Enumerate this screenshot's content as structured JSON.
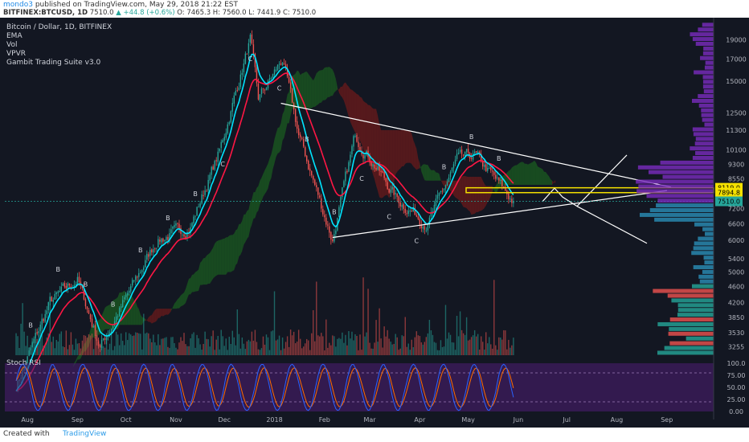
{
  "header": {
    "author": "mondo3",
    "published_text": "published on TradingView.com, May 29, 2018 21:22 EST",
    "symbol_text": "BITFINEX:BTCUSD, 1D",
    "last_text": "7510.0",
    "change_text": "▲ +44.8 (+0.6%)",
    "ohlc_text": "O: 7465.3 H: 7560.0 L: 7441.9 C: 7510.0"
  },
  "legend": {
    "title": "Bitcoin / Dollar, 1D, BITFINEX",
    "indicators": [
      "EMA",
      "Vol",
      "VPVR",
      "Gambit Trading Suite v3.0"
    ]
  },
  "osc_title": "Stoch RSI",
  "footer": {
    "created_with": "Created with",
    "brand": "TradingView"
  },
  "colors": {
    "background": "#131722",
    "bull": "#26a69a",
    "bear": "#ef5350",
    "ema_fast": "#00e5ff",
    "ema_slow": "#ff1744",
    "cloud_bull": "#1b5e20",
    "cloud_bear": "#6d1b1b",
    "stoch": "#2962ff",
    "stoch_signal": "#ff6d00",
    "osc_band": "#4a1d6e",
    "trendline": "#ffffff",
    "level_band": "#f5e100"
  },
  "chart_data": [
    {
      "type": "candlestick",
      "title": "Bitcoin / Dollar, 1D, BITFINEX",
      "y_scale": "log",
      "ylim": [
        3100,
        21000
      ],
      "x_labels": [
        "Aug",
        "Sep",
        "Oct",
        "Nov",
        "Dec",
        "2018",
        "Feb",
        "Mar",
        "Apr",
        "May",
        "Jun",
        "Jul",
        "Aug",
        "Sep"
      ],
      "y_ticks": [
        19000,
        17000,
        15000,
        12500,
        11300,
        10100,
        9300,
        8550,
        7200,
        6600,
        6000,
        5400,
        5000,
        4600,
        4200,
        3850,
        3530,
        3255
      ],
      "price_labels": [
        8119.0,
        7894.8,
        7510.0
      ],
      "key_points": [
        {
          "x": "Jul 25 2017",
          "close": 2600
        },
        {
          "x": "Aug 15 2017",
          "close": 4200
        },
        {
          "x": "Sep 01 2017",
          "close": 4800
        },
        {
          "x": "Sep 15 2017",
          "close": 3250
        },
        {
          "x": "Oct 01 2017",
          "close": 4300
        },
        {
          "x": "Oct 20 2017",
          "close": 6000
        },
        {
          "x": "Nov 10 2017",
          "close": 6500
        },
        {
          "x": "Nov 28 2017",
          "close": 10000
        },
        {
          "x": "Dec 17 2017",
          "close": 19000
        },
        {
          "x": "Dec 22 2017",
          "close": 13500
        },
        {
          "x": "Jan 06 2018",
          "close": 17000
        },
        {
          "x": "Jan 16 2018",
          "close": 11000
        },
        {
          "x": "Feb 06 2018",
          "close": 6000
        },
        {
          "x": "Feb 20 2018",
          "close": 11000
        },
        {
          "x": "Mar 18 2018",
          "close": 7600
        },
        {
          "x": "Apr 06 2018",
          "close": 6600
        },
        {
          "x": "Apr 24 2018",
          "close": 9500
        },
        {
          "x": "May 05 2018",
          "close": 9800
        },
        {
          "x": "May 29 2018",
          "close": 7510
        }
      ],
      "signal_markers": [
        "B",
        "B",
        "B",
        "B",
        "B",
        "B",
        "B",
        "C",
        "C",
        "C",
        "B",
        "B",
        "C",
        "C",
        "C",
        "B",
        "B",
        "B"
      ]
    },
    {
      "type": "line",
      "title": "Stoch RSI",
      "ylim": [
        0,
        100
      ],
      "y_ticks": [
        100.0,
        75.0,
        50.0,
        25.0,
        0.0
      ],
      "bands": [
        20,
        80
      ]
    }
  ]
}
